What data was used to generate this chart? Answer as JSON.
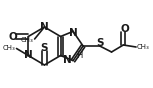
{
  "bg": "#ffffff",
  "lc": "#1a1a1a",
  "lw": 1.2,
  "fs": 6.0,
  "figsize": [
    1.53,
    0.88
  ],
  "dpi": 100,
  "xlim": [
    0,
    153
  ],
  "ylim": [
    88,
    0
  ]
}
